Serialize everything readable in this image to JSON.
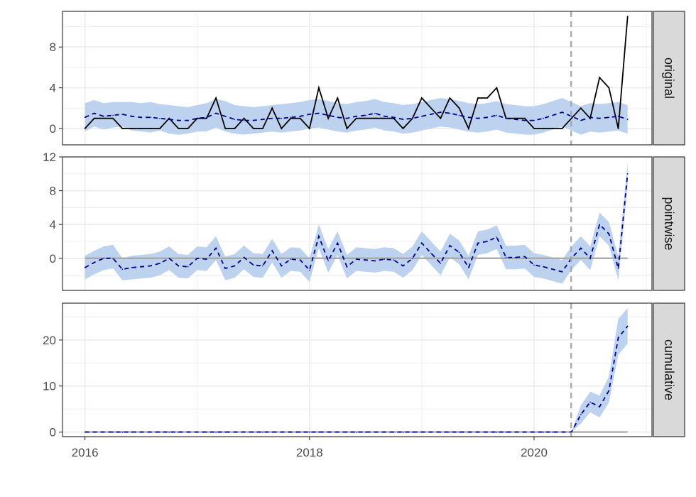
{
  "chart_data": {
    "type": "line",
    "layout": "faceted",
    "x_ticks": [
      "2016",
      "2018",
      "2020"
    ],
    "x_range": [
      2015.8,
      2021.05
    ],
    "event_x": 2020.33,
    "colors": {
      "band": "#bcd2ee",
      "observed": "#000000",
      "predicted": "#00008b",
      "reference": "#a6a6a6",
      "event": "#a6a6a6",
      "strip_bg": "#d9d9d9",
      "grid": "#ebebeb"
    },
    "x": [
      2016.0,
      2016.083,
      2016.167,
      2016.25,
      2016.333,
      2016.417,
      2016.5,
      2016.583,
      2016.667,
      2016.75,
      2016.833,
      2016.917,
      2017.0,
      2017.083,
      2017.167,
      2017.25,
      2017.333,
      2017.417,
      2017.5,
      2017.583,
      2017.667,
      2017.75,
      2017.833,
      2017.917,
      2018.0,
      2018.083,
      2018.167,
      2018.25,
      2018.333,
      2018.417,
      2018.5,
      2018.583,
      2018.667,
      2018.75,
      2018.833,
      2018.917,
      2019.0,
      2019.083,
      2019.167,
      2019.25,
      2019.333,
      2019.417,
      2019.5,
      2019.583,
      2019.667,
      2019.75,
      2019.833,
      2019.917,
      2020.0,
      2020.083,
      2020.167,
      2020.25,
      2020.333,
      2020.417,
      2020.5,
      2020.583,
      2020.667,
      2020.75,
      2020.833
    ],
    "panels": [
      {
        "label": "original",
        "y_ticks": [
          0,
          4,
          8
        ],
        "ylim": [
          -1.6,
          11.5
        ],
        "observed": [
          0,
          1,
          1,
          1,
          0,
          0,
          0,
          0,
          0,
          1,
          0,
          0,
          1,
          1,
          3,
          0,
          0,
          1,
          0,
          0,
          2,
          0,
          1,
          1,
          0,
          4,
          1,
          3,
          0,
          1,
          1,
          1,
          1,
          1,
          0,
          1,
          3,
          2,
          1,
          3,
          2,
          0,
          3,
          3,
          4,
          1,
          1,
          1,
          0,
          0,
          0,
          0,
          1,
          2,
          1,
          5,
          4,
          0,
          11
        ],
        "predicted": [
          1.1,
          1.5,
          1.2,
          1.3,
          1.4,
          1.2,
          1.1,
          1.1,
          1.0,
          0.9,
          0.8,
          0.8,
          1.0,
          1.1,
          1.5,
          1.2,
          0.9,
          0.8,
          0.8,
          0.9,
          1.0,
          1.0,
          1.1,
          1.2,
          1.4,
          1.5,
          1.3,
          1.1,
          1.0,
          1.2,
          1.3,
          1.5,
          1.2,
          1.1,
          0.9,
          1.0,
          1.2,
          1.4,
          1.6,
          1.5,
          1.3,
          1.1,
          1.0,
          1.1,
          1.3,
          1.0,
          0.9,
          0.8,
          0.8,
          1.0,
          1.3,
          1.6,
          1.2,
          0.8,
          1.1,
          1.0,
          1.1,
          1.2,
          0.9
        ],
        "lower": [
          -0.3,
          0.2,
          -0.1,
          0.1,
          0.2,
          -0.2,
          -0.3,
          -0.4,
          -0.2,
          -0.5,
          -0.6,
          -0.5,
          -0.3,
          -0.3,
          0.1,
          -0.3,
          -0.5,
          -0.6,
          -0.5,
          -0.4,
          -0.3,
          -0.4,
          -0.3,
          -0.2,
          0.0,
          0.1,
          -0.1,
          -0.3,
          -0.4,
          -0.2,
          -0.1,
          0.1,
          -0.2,
          -0.3,
          -0.5,
          -0.4,
          -0.2,
          0.0,
          0.2,
          0.1,
          -0.1,
          -0.3,
          -0.4,
          -0.3,
          -0.1,
          -0.4,
          -0.5,
          -0.6,
          -0.6,
          -0.4,
          -0.1,
          0.2,
          -0.2,
          -0.6,
          -0.3,
          -0.4,
          -0.3,
          -0.2,
          -0.5
        ],
        "upper": [
          2.5,
          2.8,
          2.5,
          2.6,
          2.6,
          2.6,
          2.5,
          2.6,
          2.4,
          2.3,
          2.2,
          2.1,
          2.3,
          2.5,
          2.9,
          2.7,
          2.3,
          2.2,
          2.1,
          2.2,
          2.3,
          2.4,
          2.5,
          2.6,
          2.8,
          2.9,
          2.7,
          2.5,
          2.4,
          2.6,
          2.7,
          2.9,
          2.6,
          2.5,
          2.3,
          2.4,
          2.6,
          2.8,
          3.0,
          2.9,
          2.7,
          2.5,
          2.4,
          2.5,
          2.7,
          2.4,
          2.3,
          2.2,
          2.2,
          2.4,
          2.7,
          3.0,
          2.6,
          2.2,
          2.5,
          2.4,
          2.5,
          2.6,
          2.3
        ],
        "reference": null
      },
      {
        "label": "pointwise",
        "y_ticks": [
          0,
          4,
          8,
          12
        ],
        "ylim": [
          -3.8,
          12.0
        ],
        "observed": null,
        "predicted": [
          -1.1,
          -0.5,
          0.0,
          0.0,
          -1.3,
          -1.1,
          -1.0,
          -0.9,
          -0.6,
          0.0,
          -0.9,
          -1.0,
          0.0,
          -0.1,
          1.2,
          -1.2,
          -0.9,
          0.1,
          -0.8,
          -0.9,
          0.9,
          -0.9,
          -0.1,
          -0.2,
          -1.4,
          2.6,
          -0.3,
          1.8,
          -1.0,
          -0.1,
          -0.2,
          -0.3,
          -0.1,
          -0.2,
          -0.9,
          0.0,
          1.8,
          0.6,
          -0.6,
          1.5,
          0.7,
          -1.1,
          1.8,
          2.0,
          2.5,
          0.1,
          0.1,
          0.2,
          -0.8,
          -1.0,
          -1.3,
          -1.6,
          0.0,
          1.2,
          0.0,
          4.0,
          2.9,
          -1.2,
          10.0
        ],
        "lower": [
          -2.5,
          -1.9,
          -1.4,
          -1.2,
          -2.6,
          -2.5,
          -2.4,
          -2.3,
          -2.0,
          -1.4,
          -2.3,
          -2.4,
          -1.4,
          -1.5,
          -0.2,
          -2.6,
          -2.3,
          -1.3,
          -2.2,
          -2.3,
          -0.5,
          -2.3,
          -1.5,
          -1.6,
          -2.8,
          1.2,
          -1.7,
          0.4,
          -2.4,
          -1.5,
          -1.6,
          -1.7,
          -1.5,
          -1.6,
          -2.3,
          -1.4,
          0.4,
          -0.8,
          -2.0,
          0.1,
          -0.7,
          -2.5,
          0.4,
          0.6,
          1.1,
          -1.3,
          -1.3,
          -1.2,
          -2.2,
          -2.4,
          -2.7,
          -3.0,
          -1.4,
          -0.2,
          -1.4,
          2.6,
          1.5,
          -2.6,
          8.6
        ],
        "upper": [
          0.3,
          0.9,
          1.4,
          1.6,
          0.0,
          0.3,
          0.4,
          0.5,
          0.8,
          1.4,
          0.5,
          0.4,
          1.4,
          1.3,
          2.6,
          0.2,
          0.5,
          1.5,
          0.6,
          0.5,
          2.3,
          0.5,
          1.3,
          1.2,
          0.0,
          4.0,
          1.1,
          3.2,
          0.4,
          1.3,
          1.2,
          1.1,
          1.3,
          1.2,
          0.5,
          1.4,
          3.2,
          2.0,
          0.8,
          2.9,
          2.1,
          0.3,
          3.2,
          3.4,
          3.9,
          1.5,
          1.5,
          1.6,
          0.6,
          0.4,
          0.1,
          -0.2,
          1.4,
          2.6,
          1.4,
          5.4,
          4.3,
          0.2,
          11.4
        ],
        "reference": 0
      },
      {
        "label": "cumulative",
        "y_ticks": [
          0,
          10,
          20
        ],
        "ylim": [
          -1.0,
          28.0
        ],
        "observed": null,
        "predicted": [
          0,
          0,
          0,
          0,
          0,
          0,
          0,
          0,
          0,
          0,
          0,
          0,
          0,
          0,
          0,
          0,
          0,
          0,
          0,
          0,
          0,
          0,
          0,
          0,
          0,
          0,
          0,
          0,
          0,
          0,
          0,
          0,
          0,
          0,
          0,
          0,
          0,
          0,
          0,
          0,
          0,
          0,
          0,
          0,
          0,
          0,
          0,
          0,
          0,
          0,
          0,
          0,
          0,
          3.8,
          6.5,
          5.5,
          9.0,
          20.5,
          23.0
        ],
        "lower": [
          0,
          0,
          0,
          0,
          0,
          0,
          0,
          0,
          0,
          0,
          0,
          0,
          0,
          0,
          0,
          0,
          0,
          0,
          0,
          0,
          0,
          0,
          0,
          0,
          0,
          0,
          0,
          0,
          0,
          0,
          0,
          0,
          0,
          0,
          0,
          0,
          0,
          0,
          0,
          0,
          0,
          0,
          0,
          0,
          0,
          0,
          0,
          0,
          0,
          0,
          0,
          0,
          0,
          1.8,
          4.3,
          3.2,
          6.4,
          16.8,
          19.2
        ],
        "upper": [
          0,
          0,
          0,
          0,
          0,
          0,
          0,
          0,
          0,
          0,
          0,
          0,
          0,
          0,
          0,
          0,
          0,
          0,
          0,
          0,
          0,
          0,
          0,
          0,
          0,
          0,
          0,
          0,
          0,
          0,
          0,
          0,
          0,
          0,
          0,
          0,
          0,
          0,
          0,
          0,
          0,
          0,
          0,
          0,
          0,
          0,
          0,
          0,
          0,
          0,
          0,
          0,
          0,
          5.8,
          8.8,
          7.9,
          12.1,
          24.6,
          26.9
        ],
        "reference": 0
      }
    ]
  }
}
